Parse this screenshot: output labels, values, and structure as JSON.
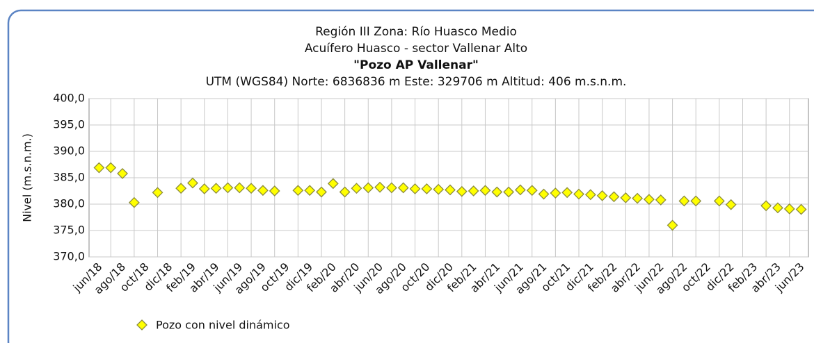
{
  "chart_data": {
    "type": "scatter",
    "title": [
      "Región III Zona: Río Huasco Medio",
      "Acuífero Huasco - sector Vallenar Alto",
      "\"Pozo AP Vallenar\"",
      "UTM (WGS84) Norte: 6836836 m Este: 329706 m   Altitud: 406 m.s.n.m."
    ],
    "y_label": "Nivel (m.s.n.m.)",
    "categories": [
      "jun/18",
      null,
      "ago/18",
      null,
      "oct/18",
      null,
      "dic/18",
      null,
      "feb/19",
      null,
      "abr/19",
      null,
      "jun/19",
      null,
      "ago/19",
      null,
      "oct/19",
      null,
      "dic/19",
      null,
      "feb/20",
      null,
      "abr/20",
      null,
      "jun/20",
      null,
      "ago/20",
      null,
      "oct/20",
      null,
      "dic/20",
      null,
      "feb/21",
      null,
      "abr/21",
      null,
      "jun/21",
      null,
      "ago/21",
      null,
      "oct/21",
      null,
      "dic/21",
      null,
      "feb/22",
      null,
      "abr/22",
      null,
      "jun/22",
      null,
      "ago/22",
      null,
      "oct/22",
      null,
      "dic/22",
      null,
      "feb/23",
      null,
      "abr/23",
      null,
      "jun/23"
    ],
    "series": [
      {
        "name": "Pozo con nivel dinámico",
        "color": "#ffff00",
        "values": [
          386.9,
          386.9,
          385.8,
          380.3,
          null,
          382.2,
          null,
          383.0,
          384.0,
          382.9,
          383.0,
          383.1,
          383.1,
          383.0,
          382.6,
          382.5,
          null,
          382.6,
          382.6,
          382.3,
          383.9,
          382.3,
          383.0,
          383.1,
          383.2,
          383.1,
          383.1,
          382.9,
          382.9,
          382.8,
          382.7,
          382.4,
          382.5,
          382.6,
          382.3,
          382.3,
          382.7,
          382.6,
          381.9,
          382.1,
          382.2,
          381.9,
          381.8,
          381.6,
          381.4,
          381.2,
          381.1,
          380.9,
          380.8,
          376.0,
          380.6,
          380.6,
          null,
          380.6,
          379.9,
          null,
          null,
          379.7,
          379.3,
          379.1,
          379.0
        ]
      }
    ],
    "ylim": [
      370,
      400
    ],
    "yticks": [
      {
        "value": 370,
        "label": "370,0"
      },
      {
        "value": 375,
        "label": "375,0"
      },
      {
        "value": 380,
        "label": "380,0"
      },
      {
        "value": 385,
        "label": "385,0"
      },
      {
        "value": 390,
        "label": "390,0"
      },
      {
        "value": 395,
        "label": "395,0"
      },
      {
        "value": 400,
        "label": "400,0"
      }
    ],
    "grid": true,
    "legend": "bottom-left"
  }
}
